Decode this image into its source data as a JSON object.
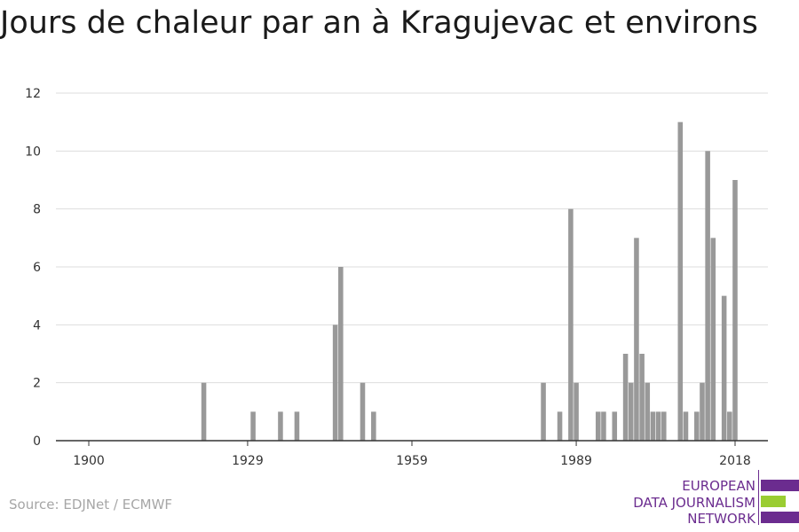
{
  "title": "Jours de chaleur par an à Kragujevac et environs",
  "source": "Source: EDJNet / ECMWF",
  "logo": {
    "lines": [
      "EUROPEAN",
      "DATA JOURNALISM",
      "NETWORK"
    ],
    "colors": {
      "text": "#6b2c8f",
      "bar_primary": "#6b2c8f",
      "bar_accent": "#9acd32"
    }
  },
  "colors": {
    "bar": "#999999",
    "grid": "#dddddd",
    "axis": "#333333",
    "tick_text": "#333333"
  },
  "chart_data": {
    "type": "bar",
    "title": "Jours de chaleur par an à Kragujevac et environs",
    "xlabel": "",
    "ylabel": "",
    "xlim": [
      1894,
      2024
    ],
    "ylim": [
      0,
      12
    ],
    "y_ticks": [
      0,
      2,
      4,
      6,
      8,
      10,
      12
    ],
    "x_ticks": [
      1900,
      1929,
      1959,
      1989,
      2018
    ],
    "grid": true,
    "x": [
      1921,
      1930,
      1935,
      1938,
      1945,
      1946,
      1950,
      1952,
      1983,
      1986,
      1988,
      1989,
      1993,
      1994,
      1996,
      1998,
      1999,
      2000,
      2001,
      2002,
      2003,
      2004,
      2005,
      2008,
      2009,
      2011,
      2012,
      2013,
      2014,
      2016,
      2017,
      2018
    ],
    "values": [
      2,
      1,
      1,
      1,
      4,
      6,
      2,
      1,
      2,
      1,
      8,
      2,
      1,
      1,
      1,
      3,
      2,
      7,
      3,
      2,
      1,
      1,
      1,
      11,
      1,
      1,
      2,
      10,
      7,
      5,
      1,
      9
    ]
  }
}
